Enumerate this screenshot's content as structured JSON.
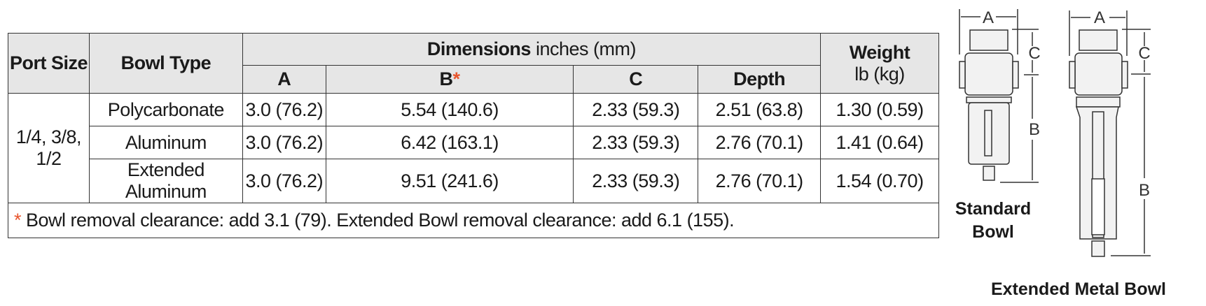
{
  "table": {
    "headers": {
      "port_size": "Port Size",
      "bowl_type": "Bowl Type",
      "dimensions": "Dimensions",
      "dimensions_units": "inches (mm)",
      "weight": "Weight",
      "weight_units": "lb (kg)",
      "col_a": "A",
      "col_b": "B",
      "col_b_mark": "*",
      "col_c": "C",
      "col_depth": "Depth"
    },
    "port_size": [
      "1/4, 3/8,",
      "1/2"
    ],
    "rows": [
      {
        "bowl": "Polycarbonate",
        "a": "3.0 (76.2)",
        "b": "5.54 (140.6)",
        "c": "2.33 (59.3)",
        "depth": "2.51 (63.8)",
        "weight": "1.30 (0.59)"
      },
      {
        "bowl": "Aluminum",
        "a": "3.0 (76.2)",
        "b": "6.42 (163.1)",
        "c": "2.33 (59.3)",
        "depth": "2.76 (70.1)",
        "weight": "1.41 (0.64)"
      },
      {
        "bowl": "Extended Aluminum",
        "a": "3.0 (76.2)",
        "b": "9.51 (241.6)",
        "c": "2.33 (59.3)",
        "depth": "2.76 (70.1)",
        "weight": "1.54 (0.70)"
      }
    ],
    "footnote_mark": "*",
    "footnote": "Bowl removal clearance: add 3.1 (79).  Extended Bowl removal clearance: add 6.1 (155)."
  },
  "figures": {
    "standard_caption": [
      "Standard",
      "Bowl"
    ],
    "extended_caption": "Extended Metal Bowl",
    "dim_a": "A",
    "dim_b": "B",
    "dim_c": "C"
  },
  "colors": {
    "asterisk": "#e8552d",
    "header_bg": "#e6e6e6"
  }
}
